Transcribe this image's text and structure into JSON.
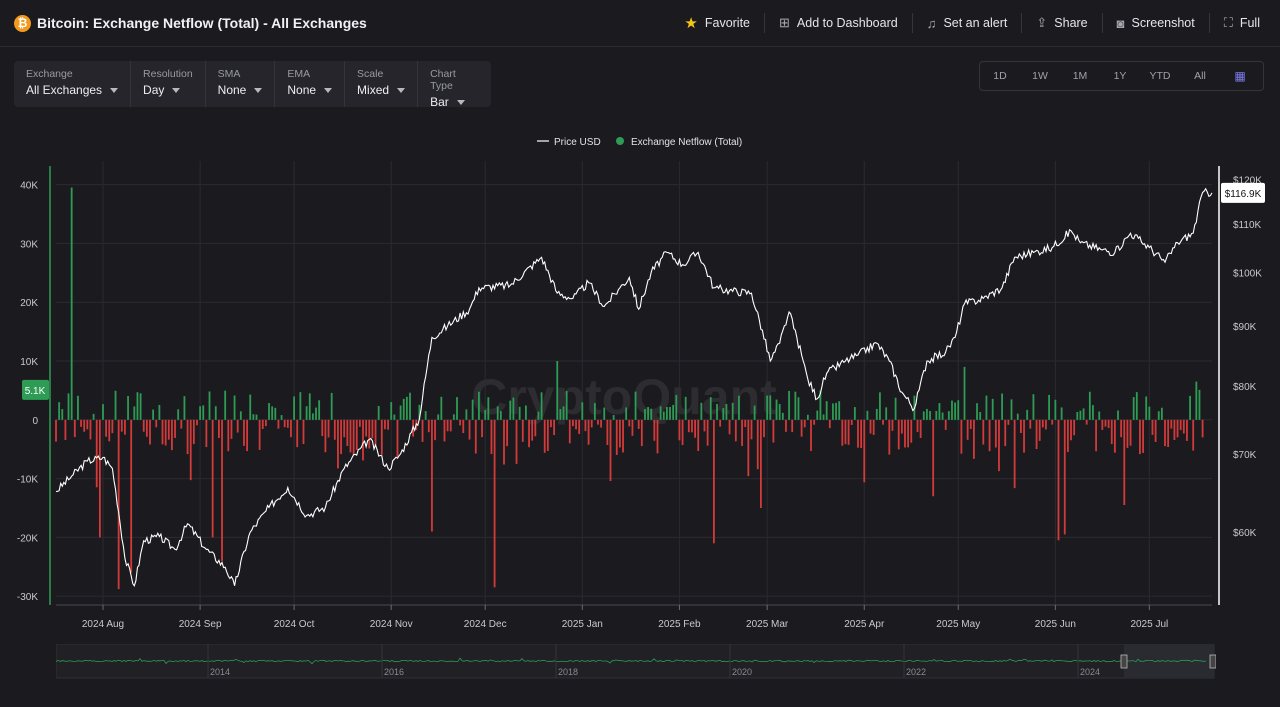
{
  "header": {
    "logo_glyph": "₿",
    "title": "Bitcoin: Exchange Netflow (Total) - All Exchanges",
    "actions": [
      {
        "label": "Favorite",
        "icon": "star-icon"
      },
      {
        "label": "Add to Dashboard",
        "icon": "add-dashboard-icon"
      },
      {
        "label": "Set an alert",
        "icon": "bell-icon"
      },
      {
        "label": "Share",
        "icon": "share-icon"
      },
      {
        "label": "Screenshot",
        "icon": "camera-icon"
      },
      {
        "label": "Full",
        "icon": "fullscreen-icon"
      }
    ]
  },
  "controls": [
    {
      "label": "Exchange",
      "value": "All Exchanges"
    },
    {
      "label": "Resolution",
      "value": "Day"
    },
    {
      "label": "SMA",
      "value": "None"
    },
    {
      "label": "EMA",
      "value": "None"
    },
    {
      "label": "Scale",
      "value": "Mixed"
    },
    {
      "label": "Chart Type",
      "value": "Bar"
    }
  ],
  "ranges": [
    "1D",
    "1W",
    "1M",
    "1Y",
    "YTD",
    "All"
  ],
  "colors": {
    "positive": "#2e9c55",
    "negative": "#d33a3a",
    "price": "#ffffff",
    "background": "#1b1b1f"
  },
  "chart_data": {
    "type": "bar",
    "legend": [
      "Price USD",
      "Exchange Netflow (Total)"
    ],
    "legend_position": "top-center",
    "watermark": "CryptoQuant",
    "grid": true,
    "left_axis": {
      "ticks": [
        40000,
        30000,
        20000,
        10000,
        0,
        -10000,
        -20000,
        -30000
      ],
      "labels": [
        "40K",
        "30K",
        "20K",
        "10K",
        "0",
        "-10K",
        "-20K",
        "-30K"
      ],
      "range": [
        -31500,
        43000
      ]
    },
    "right_axis": {
      "ticks": [
        120000,
        110000,
        100000,
        90000,
        80000,
        70000,
        60000
      ],
      "labels": [
        "$120K",
        "$110K",
        "$100K",
        "$90K",
        "$80K",
        "$70K",
        "$60K"
      ],
      "range": [
        52000,
        123000
      ],
      "scale": "log"
    },
    "x_labels": [
      "2024 Aug",
      "2024 Sep",
      "2024 Oct",
      "2024 Nov",
      "2024 Dec",
      "2025 Jan",
      "2025 Feb",
      "2025 Mar",
      "2025 Apr",
      "2025 May",
      "2025 Jun",
      "2025 Jul"
    ],
    "x_label_days": [
      15,
      46,
      76,
      107,
      137,
      168,
      199,
      227,
      258,
      288,
      319,
      349
    ],
    "x_range_days": [
      0,
      369
    ],
    "last_netflow_label": "5.1K",
    "last_price_label": "$116.9K",
    "netflow_keypoints": [
      {
        "day": 1,
        "value": 3000
      },
      {
        "day": 5,
        "value": 39500
      },
      {
        "day": 14,
        "value": -20000
      },
      {
        "day": 20,
        "value": -28800
      },
      {
        "day": 24,
        "value": -26000
      },
      {
        "day": 50,
        "value": -20000
      },
      {
        "day": 53,
        "value": -24000
      },
      {
        "day": 120,
        "value": -19000
      },
      {
        "day": 140,
        "value": -28500
      },
      {
        "day": 160,
        "value": 10000
      },
      {
        "day": 210,
        "value": -21000
      },
      {
        "day": 225,
        "value": -15000
      },
      {
        "day": 280,
        "value": -13000
      },
      {
        "day": 290,
        "value": 9000
      },
      {
        "day": 320,
        "value": -20500
      },
      {
        "day": 322,
        "value": -19500
      },
      {
        "day": 341,
        "value": -14500
      },
      {
        "day": 364,
        "value": 6500
      },
      {
        "day": 365,
        "value": 5100
      }
    ],
    "price_keypoints": [
      {
        "day": 0,
        "value": 65000
      },
      {
        "day": 5,
        "value": 67000
      },
      {
        "day": 10,
        "value": 69000
      },
      {
        "day": 15,
        "value": 69500
      },
      {
        "day": 18,
        "value": 68000
      },
      {
        "day": 22,
        "value": 57000
      },
      {
        "day": 25,
        "value": 54000
      },
      {
        "day": 28,
        "value": 59000
      },
      {
        "day": 33,
        "value": 59500
      },
      {
        "day": 38,
        "value": 58000
      },
      {
        "day": 42,
        "value": 61000
      },
      {
        "day": 48,
        "value": 58000
      },
      {
        "day": 54,
        "value": 56000
      },
      {
        "day": 57,
        "value": 54000
      },
      {
        "day": 62,
        "value": 60000
      },
      {
        "day": 68,
        "value": 63000
      },
      {
        "day": 74,
        "value": 65500
      },
      {
        "day": 80,
        "value": 62000
      },
      {
        "day": 86,
        "value": 63000
      },
      {
        "day": 92,
        "value": 68000
      },
      {
        "day": 100,
        "value": 72000
      },
      {
        "day": 106,
        "value": 68000
      },
      {
        "day": 110,
        "value": 70000
      },
      {
        "day": 116,
        "value": 75000
      },
      {
        "day": 120,
        "value": 88000
      },
      {
        "day": 125,
        "value": 90000
      },
      {
        "day": 132,
        "value": 93000
      },
      {
        "day": 135,
        "value": 97000
      },
      {
        "day": 145,
        "value": 97500
      },
      {
        "day": 155,
        "value": 103000
      },
      {
        "day": 160,
        "value": 96000
      },
      {
        "day": 165,
        "value": 95000
      },
      {
        "day": 170,
        "value": 98000
      },
      {
        "day": 175,
        "value": 93500
      },
      {
        "day": 180,
        "value": 97000
      },
      {
        "day": 183,
        "value": 99000
      },
      {
        "day": 186,
        "value": 93000
      },
      {
        "day": 190,
        "value": 100000
      },
      {
        "day": 195,
        "value": 104000
      },
      {
        "day": 200,
        "value": 101500
      },
      {
        "day": 205,
        "value": 104000
      },
      {
        "day": 210,
        "value": 97000
      },
      {
        "day": 215,
        "value": 96500
      },
      {
        "day": 222,
        "value": 96000
      },
      {
        "day": 228,
        "value": 84000
      },
      {
        "day": 231,
        "value": 87000
      },
      {
        "day": 234,
        "value": 92500
      },
      {
        "day": 238,
        "value": 85000
      },
      {
        "day": 240,
        "value": 81000
      },
      {
        "day": 243,
        "value": 78000
      },
      {
        "day": 246,
        "value": 82000
      },
      {
        "day": 252,
        "value": 84000
      },
      {
        "day": 256,
        "value": 85000
      },
      {
        "day": 262,
        "value": 87000
      },
      {
        "day": 266,
        "value": 84000
      },
      {
        "day": 270,
        "value": 79000
      },
      {
        "day": 274,
        "value": 76500
      },
      {
        "day": 278,
        "value": 84000
      },
      {
        "day": 284,
        "value": 85500
      },
      {
        "day": 287,
        "value": 88000
      },
      {
        "day": 290,
        "value": 94000
      },
      {
        "day": 296,
        "value": 95000
      },
      {
        "day": 302,
        "value": 97000
      },
      {
        "day": 306,
        "value": 103000
      },
      {
        "day": 312,
        "value": 104000
      },
      {
        "day": 318,
        "value": 105000
      },
      {
        "day": 324,
        "value": 108500
      },
      {
        "day": 327,
        "value": 106000
      },
      {
        "day": 334,
        "value": 104500
      },
      {
        "day": 338,
        "value": 104000
      },
      {
        "day": 343,
        "value": 108000
      },
      {
        "day": 349,
        "value": 105000
      },
      {
        "day": 354,
        "value": 102000
      },
      {
        "day": 358,
        "value": 106000
      },
      {
        "day": 363,
        "value": 108000
      },
      {
        "day": 366,
        "value": 117000
      },
      {
        "day": 369,
        "value": 116900
      }
    ]
  },
  "navigator": {
    "year_labels": [
      "2014",
      "2016",
      "2018",
      "2020",
      "2022",
      "2024"
    ]
  }
}
